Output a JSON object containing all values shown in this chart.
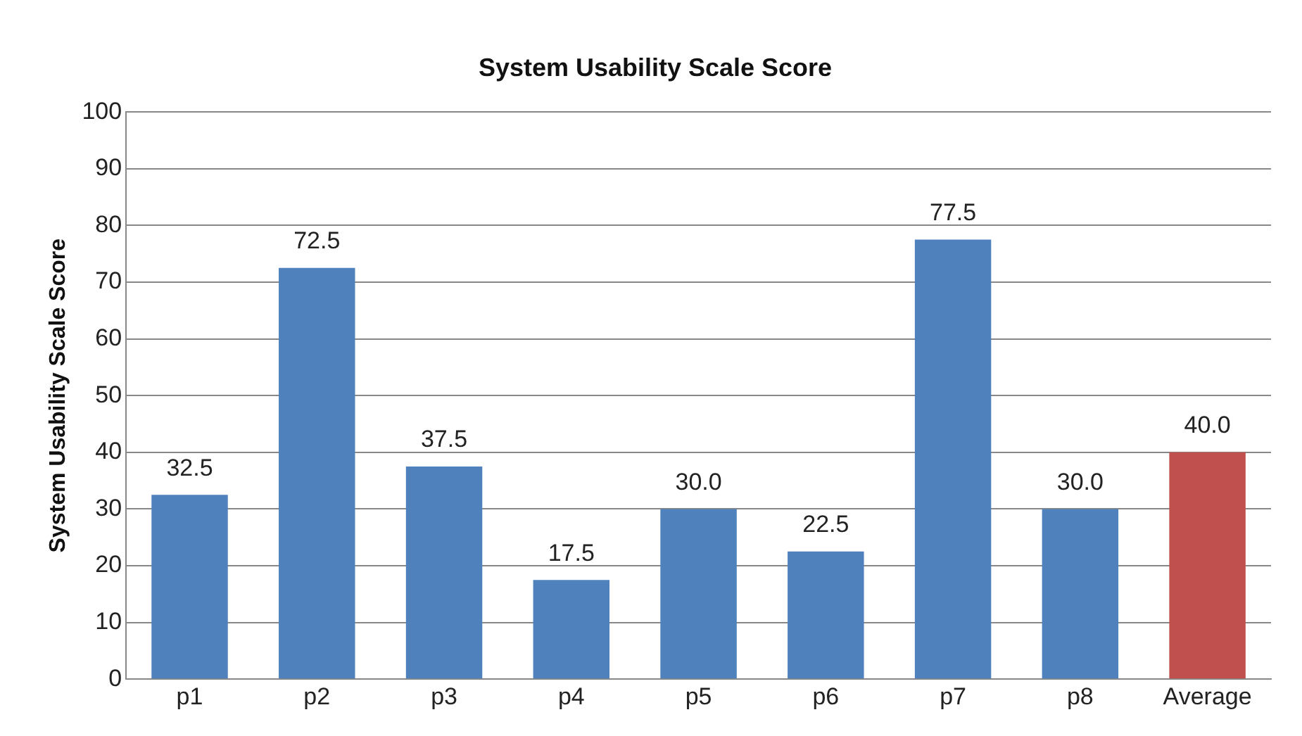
{
  "chart_data": {
    "type": "bar",
    "title": "System Usability Scale Score",
    "ylabel": "System Usability Scale Score",
    "categories": [
      "p1",
      "p2",
      "p3",
      "p4",
      "p5",
      "p6",
      "p7",
      "p8",
      "Average"
    ],
    "values": [
      32.5,
      72.5,
      37.5,
      17.5,
      30.0,
      22.5,
      77.5,
      30.0,
      40.0
    ],
    "value_labels": [
      "32.5",
      "72.5",
      "37.5",
      "17.5",
      "30.0",
      "22.5",
      "77.5",
      "30.0",
      "40.0"
    ],
    "colors": [
      "#4f81bd",
      "#4f81bd",
      "#4f81bd",
      "#4f81bd",
      "#4f81bd",
      "#4f81bd",
      "#4f81bd",
      "#4f81bd",
      "#c0504d"
    ],
    "ylim": [
      0,
      100
    ],
    "yticks": [
      0,
      10,
      20,
      30,
      40,
      50,
      60,
      70,
      80,
      90,
      100
    ],
    "grid": "y",
    "legend": false
  }
}
